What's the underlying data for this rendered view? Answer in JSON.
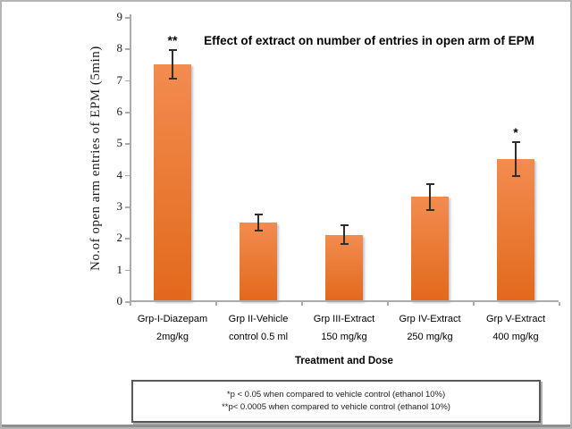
{
  "chart_data": {
    "type": "bar",
    "title": "Effect of extract on number of entries in open arm of EPM",
    "xlabel": "Treatment and Dose",
    "ylabel": "No.of open arm entries of EPM (5min)",
    "ylim": [
      0,
      9
    ],
    "ytick_step": 1,
    "grid": false,
    "legend_position": "none",
    "categories": [
      "Grp-I-Diazepam\n2mg/kg",
      "Grp II-Vehicle\ncontrol 0.5 ml",
      "Grp III-Extract\n150 mg/kg",
      "Grp IV-Extract\n250 mg/kg",
      "Grp V-Extract\n400 mg/kg"
    ],
    "values": [
      7.5,
      2.5,
      2.1,
      3.3,
      4.5
    ],
    "errors": [
      0.45,
      0.25,
      0.3,
      0.4,
      0.55
    ],
    "significance": [
      "**",
      "",
      "",
      "",
      "*"
    ],
    "colors": {
      "bar_gradient_top": "#F28C4F",
      "bar_gradient_bottom": "#E2691B",
      "axis_line": "#ABABAB",
      "error_bar": "#2E2E2E",
      "text": "#000000",
      "frame_border": "#B5B5B5",
      "footnote_border": "#595959"
    }
  },
  "footnote": {
    "lines": [
      "*p < 0.05 when compared to vehicle control (ethanol 10%)",
      "**p< 0.0005 when compared to vehicle control (ethanol 10%)"
    ]
  }
}
